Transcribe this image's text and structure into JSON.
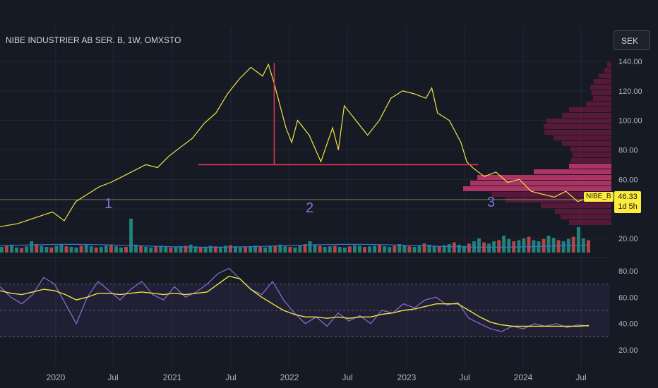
{
  "header": {
    "title": "NIBE INDUSTRIER AB SER. B, 1W, OMXSTO",
    "currency": "SEK"
  },
  "price_badge": {
    "symbol": "NIBE_B",
    "price": "46.33",
    "countdown": "1d 5h"
  },
  "wave_labels": [
    "1",
    "2",
    "3"
  ],
  "colors": {
    "background": "#161a25",
    "price_line": "#f0e442",
    "neckline": "#e0354c",
    "volume_up": "#26a69a",
    "volume_down": "#ef5350",
    "volume_ma": "#2e7bd6",
    "rsi": "#8a6fd4",
    "rsi_ma": "#f0e442",
    "profile": "#8c1a4a",
    "profile_hot": "#e03c7a"
  },
  "chart_data": [
    {
      "type": "line",
      "name_panel": "price",
      "y_ticks": [
        "140.00",
        "120.00",
        "100.00",
        "80.00",
        "60.00",
        "40.00",
        "20.00"
      ],
      "x_ticks": [
        "2020",
        "Jul",
        "2021",
        "Jul",
        "2022",
        "Jul",
        "2023",
        "Jul",
        "2024",
        "Jul"
      ],
      "ylim": [
        10,
        145
      ],
      "x": [
        2019.55,
        2019.7,
        2019.85,
        2020.0,
        2020.1,
        2020.2,
        2020.3,
        2020.4,
        2020.5,
        2020.6,
        2020.7,
        2020.8,
        2020.9,
        2021.0,
        2021.1,
        2021.2,
        2021.3,
        2021.4,
        2021.5,
        2021.6,
        2021.7,
        2021.8,
        2021.85,
        2021.9,
        2021.95,
        2022.0,
        2022.05,
        2022.1,
        2022.2,
        2022.3,
        2022.4,
        2022.45,
        2022.5,
        2022.6,
        2022.7,
        2022.8,
        2022.9,
        2023.0,
        2023.1,
        2023.2,
        2023.25,
        2023.3,
        2023.4,
        2023.5,
        2023.55,
        2023.6,
        2023.7,
        2023.8,
        2023.9,
        2024.0,
        2024.1,
        2024.2,
        2024.3,
        2024.4,
        2024.5,
        2024.55
      ],
      "values": [
        28,
        30,
        34,
        38,
        32,
        45,
        50,
        55,
        58,
        62,
        66,
        70,
        68,
        76,
        82,
        88,
        98,
        105,
        118,
        128,
        136,
        130,
        138,
        125,
        110,
        95,
        85,
        100,
        90,
        72,
        95,
        80,
        110,
        100,
        90,
        100,
        115,
        120,
        118,
        115,
        122,
        105,
        100,
        85,
        72,
        68,
        62,
        65,
        58,
        60,
        52,
        50,
        48,
        52,
        45,
        46.33
      ],
      "current_price": 46.33,
      "neckline": {
        "value": 70,
        "from": 2021.25,
        "to": 2023.65
      },
      "head_marker": {
        "x": 2021.9,
        "from": 70,
        "to": 139
      }
    },
    {
      "type": "bar",
      "name_panel": "volume",
      "ylim": [
        0,
        100
      ],
      "values": [
        10,
        12,
        14,
        9,
        8,
        11,
        20,
        15,
        12,
        10,
        9,
        12,
        14,
        11,
        10,
        9,
        12,
        15,
        11,
        9,
        10,
        12,
        13,
        11,
        9,
        10,
        60,
        14,
        12,
        10,
        9,
        11,
        12,
        10,
        9,
        10,
        11,
        12,
        14,
        11,
        10,
        9,
        12,
        11,
        10,
        12,
        13,
        11,
        9,
        10,
        11,
        12,
        10,
        9,
        11,
        12,
        14,
        11,
        10,
        9,
        12,
        15,
        20,
        14,
        12,
        10,
        11,
        12,
        10,
        9,
        11,
        13,
        12,
        10,
        11,
        12,
        14,
        11,
        10,
        12,
        15,
        13,
        11,
        10,
        12,
        16,
        14,
        12,
        11,
        13,
        15,
        18,
        14,
        12,
        16,
        20,
        25,
        18,
        16,
        20,
        22,
        30,
        24,
        20,
        22,
        25,
        28,
        22,
        20,
        24,
        30,
        26,
        22,
        20,
        24,
        28,
        45,
        25,
        22
      ],
      "ma_level": 12
    },
    {
      "type": "line",
      "name_panel": "rsi",
      "y_ticks": [
        "80.00",
        "60.00",
        "40.00",
        "20.00"
      ],
      "ylim": [
        15,
        90
      ],
      "bands": [
        30,
        50,
        70
      ],
      "rsi": [
        68,
        60,
        55,
        62,
        75,
        70,
        55,
        40,
        60,
        72,
        65,
        58,
        66,
        72,
        62,
        58,
        68,
        60,
        64,
        70,
        78,
        82,
        74,
        66,
        62,
        72,
        58,
        48,
        40,
        45,
        38,
        48,
        42,
        46,
        40,
        50,
        48,
        55,
        52,
        58,
        60,
        54,
        56,
        44,
        40,
        36,
        34,
        38,
        36,
        40,
        38,
        40,
        37,
        39,
        38
      ],
      "rsi_ma": [
        65,
        63,
        62,
        64,
        66,
        65,
        62,
        58,
        60,
        63,
        63,
        62,
        63,
        64,
        63,
        62,
        63,
        62,
        63,
        64,
        70,
        76,
        74,
        66,
        60,
        55,
        50,
        47,
        45,
        45,
        44,
        45,
        44,
        45,
        45,
        47,
        48,
        50,
        51,
        53,
        55,
        55,
        55,
        50,
        45,
        41,
        39,
        38,
        38,
        38,
        38,
        38,
        38,
        38,
        38.5
      ]
    }
  ]
}
